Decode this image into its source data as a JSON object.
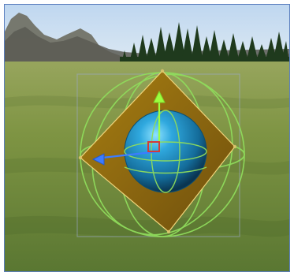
{
  "viewport": {
    "sky_top": "#bcd8ef",
    "sky_bottom": "#dcebf6",
    "ground_near": "#5f7f35",
    "ground_far": "#8f9b55"
  },
  "gizmo": {
    "light_green": "#8fdc5c",
    "axis_y": "#9cff3f",
    "axis_x": "#3c7cff",
    "diamond": "#8c6c10",
    "sphere": "#1e8fc2",
    "center_handle": "#d33a3a"
  },
  "icons": {
    "move": "move-tool-icon",
    "rotate": "rotate-tool-icon",
    "scale": "scale-tool-icon"
  }
}
